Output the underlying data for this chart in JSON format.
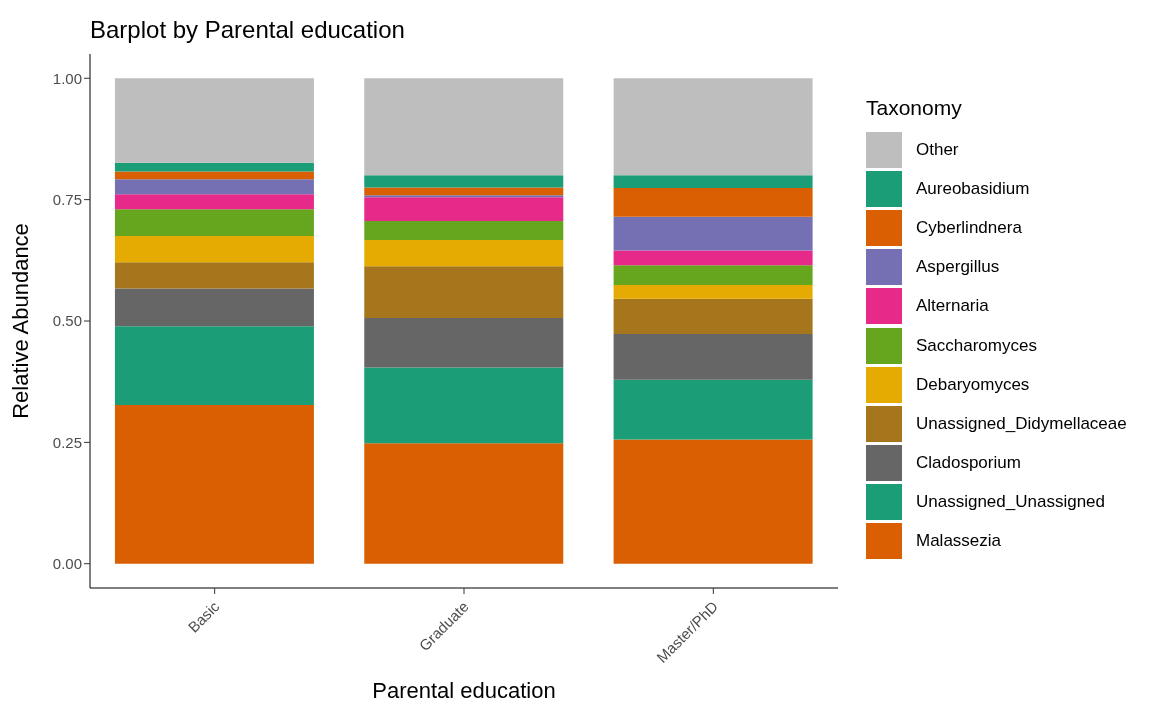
{
  "chart_data": {
    "type": "bar",
    "title": "Barplot by Parental education",
    "xlabel": "Parental education",
    "ylabel": "Relative Abundance",
    "legend_title": "Taxonomy",
    "categories": [
      "Basic",
      "Graduate",
      "Master/PhD"
    ],
    "stacked": true,
    "series": [
      {
        "name": "Malassezia",
        "color": "#d95f02",
        "values": [
          0.327,
          0.248,
          0.256
        ]
      },
      {
        "name": "Unassigned_Unassigned",
        "color": "#1b9e77",
        "values": [
          0.162,
          0.156,
          0.123
        ]
      },
      {
        "name": "Cladosporium",
        "color": "#666666",
        "values": [
          0.078,
          0.102,
          0.094
        ]
      },
      {
        "name": "Unassigned_Didymellaceae",
        "color": "#a6761d",
        "values": [
          0.054,
          0.107,
          0.073
        ]
      },
      {
        "name": "Debaryomyces",
        "color": "#e6ab02",
        "values": [
          0.054,
          0.054,
          0.028
        ]
      },
      {
        "name": "Saccharomyces",
        "color": "#66a61e",
        "values": [
          0.055,
          0.039,
          0.041
        ]
      },
      {
        "name": "Alternaria",
        "color": "#e7298a",
        "values": [
          0.031,
          0.049,
          0.03
        ]
      },
      {
        "name": "Aspergillus",
        "color": "#7570b3",
        "values": [
          0.031,
          0.004,
          0.07
        ]
      },
      {
        "name": "Cyberlindnera",
        "color": "#d95f02",
        "values": [
          0.016,
          0.016,
          0.059
        ]
      },
      {
        "name": "Aureobasidium",
        "color": "#1b9e77",
        "values": [
          0.018,
          0.025,
          0.026
        ]
      },
      {
        "name": "Other",
        "color": "#bebebe",
        "values": [
          0.174,
          0.2,
          0.2
        ]
      }
    ],
    "ylim": [
      -0.05,
      1.05
    ],
    "yticks": [
      {
        "value": 0,
        "label": "0.00"
      },
      {
        "value": 0.25,
        "label": "0.25"
      },
      {
        "value": 0.5,
        "label": "0.50"
      },
      {
        "value": 0.75,
        "label": "0.75"
      },
      {
        "value": 1,
        "label": "1.00"
      }
    ],
    "grid": false,
    "legend": "right"
  }
}
